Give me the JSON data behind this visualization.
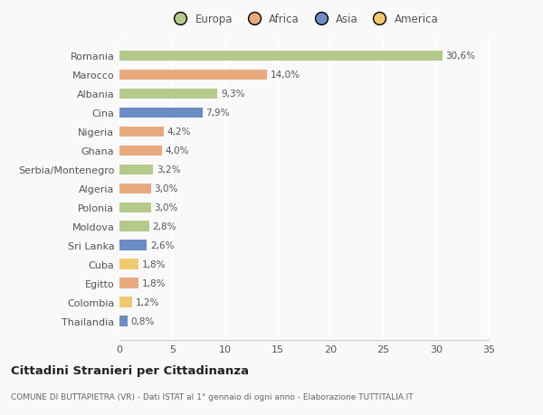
{
  "categories": [
    "Romania",
    "Marocco",
    "Albania",
    "Cina",
    "Nigeria",
    "Ghana",
    "Serbia/Montenegro",
    "Algeria",
    "Polonia",
    "Moldova",
    "Sri Lanka",
    "Cuba",
    "Egitto",
    "Colombia",
    "Thailandia"
  ],
  "values": [
    30.6,
    14.0,
    9.3,
    7.9,
    4.2,
    4.0,
    3.2,
    3.0,
    3.0,
    2.8,
    2.6,
    1.8,
    1.8,
    1.2,
    0.8
  ],
  "labels": [
    "30,6%",
    "14,0%",
    "9,3%",
    "7,9%",
    "4,2%",
    "4,0%",
    "3,2%",
    "3,0%",
    "3,0%",
    "2,8%",
    "2,6%",
    "1,8%",
    "1,8%",
    "1,2%",
    "0,8%"
  ],
  "colors": [
    "#b5c98a",
    "#e8a97e",
    "#b5c98a",
    "#6b8dc4",
    "#e8a97e",
    "#e8a97e",
    "#b5c98a",
    "#e8a97e",
    "#b5c98a",
    "#b5c98a",
    "#6b8dc4",
    "#f0c96e",
    "#e8a97e",
    "#f0c96e",
    "#6b8dc4"
  ],
  "legend_labels": [
    "Europa",
    "Africa",
    "Asia",
    "America"
  ],
  "legend_colors": [
    "#b5c98a",
    "#e8a97e",
    "#6b8dc4",
    "#f0c96e"
  ],
  "title": "Cittadini Stranieri per Cittadinanza",
  "subtitle": "COMUNE DI BUTTAPIETRA (VR) - Dati ISTAT al 1° gennaio di ogni anno - Elaborazione TUTTITALIA.IT",
  "xlim": [
    0,
    35
  ],
  "xticks": [
    0,
    5,
    10,
    15,
    20,
    25,
    30,
    35
  ],
  "bg_color": "#f9f9f9",
  "grid_color": "#ffffff",
  "bar_height": 0.55
}
